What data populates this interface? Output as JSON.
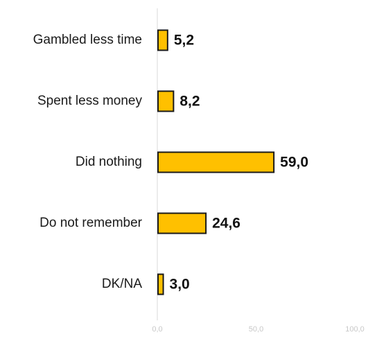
{
  "chart_data": {
    "type": "bar",
    "orientation": "horizontal",
    "categories": [
      "Gambled less time",
      "Spent less money",
      "Did nothing",
      "Do not remember",
      "DK/NA"
    ],
    "values": [
      5.2,
      8.2,
      59.0,
      24.6,
      3.0
    ],
    "value_labels": [
      "5,2",
      "8,2",
      "59,0",
      "24,6",
      "3,0"
    ],
    "xlim": [
      0,
      100
    ],
    "ticks": [
      0,
      50,
      100
    ],
    "tick_labels": [
      "0,0",
      "50,0",
      "100,0"
    ],
    "title": "",
    "xlabel": "",
    "ylabel": "",
    "grid": false,
    "bar_color": "#FFC000",
    "bar_edge_color": "#1a1a1a"
  }
}
